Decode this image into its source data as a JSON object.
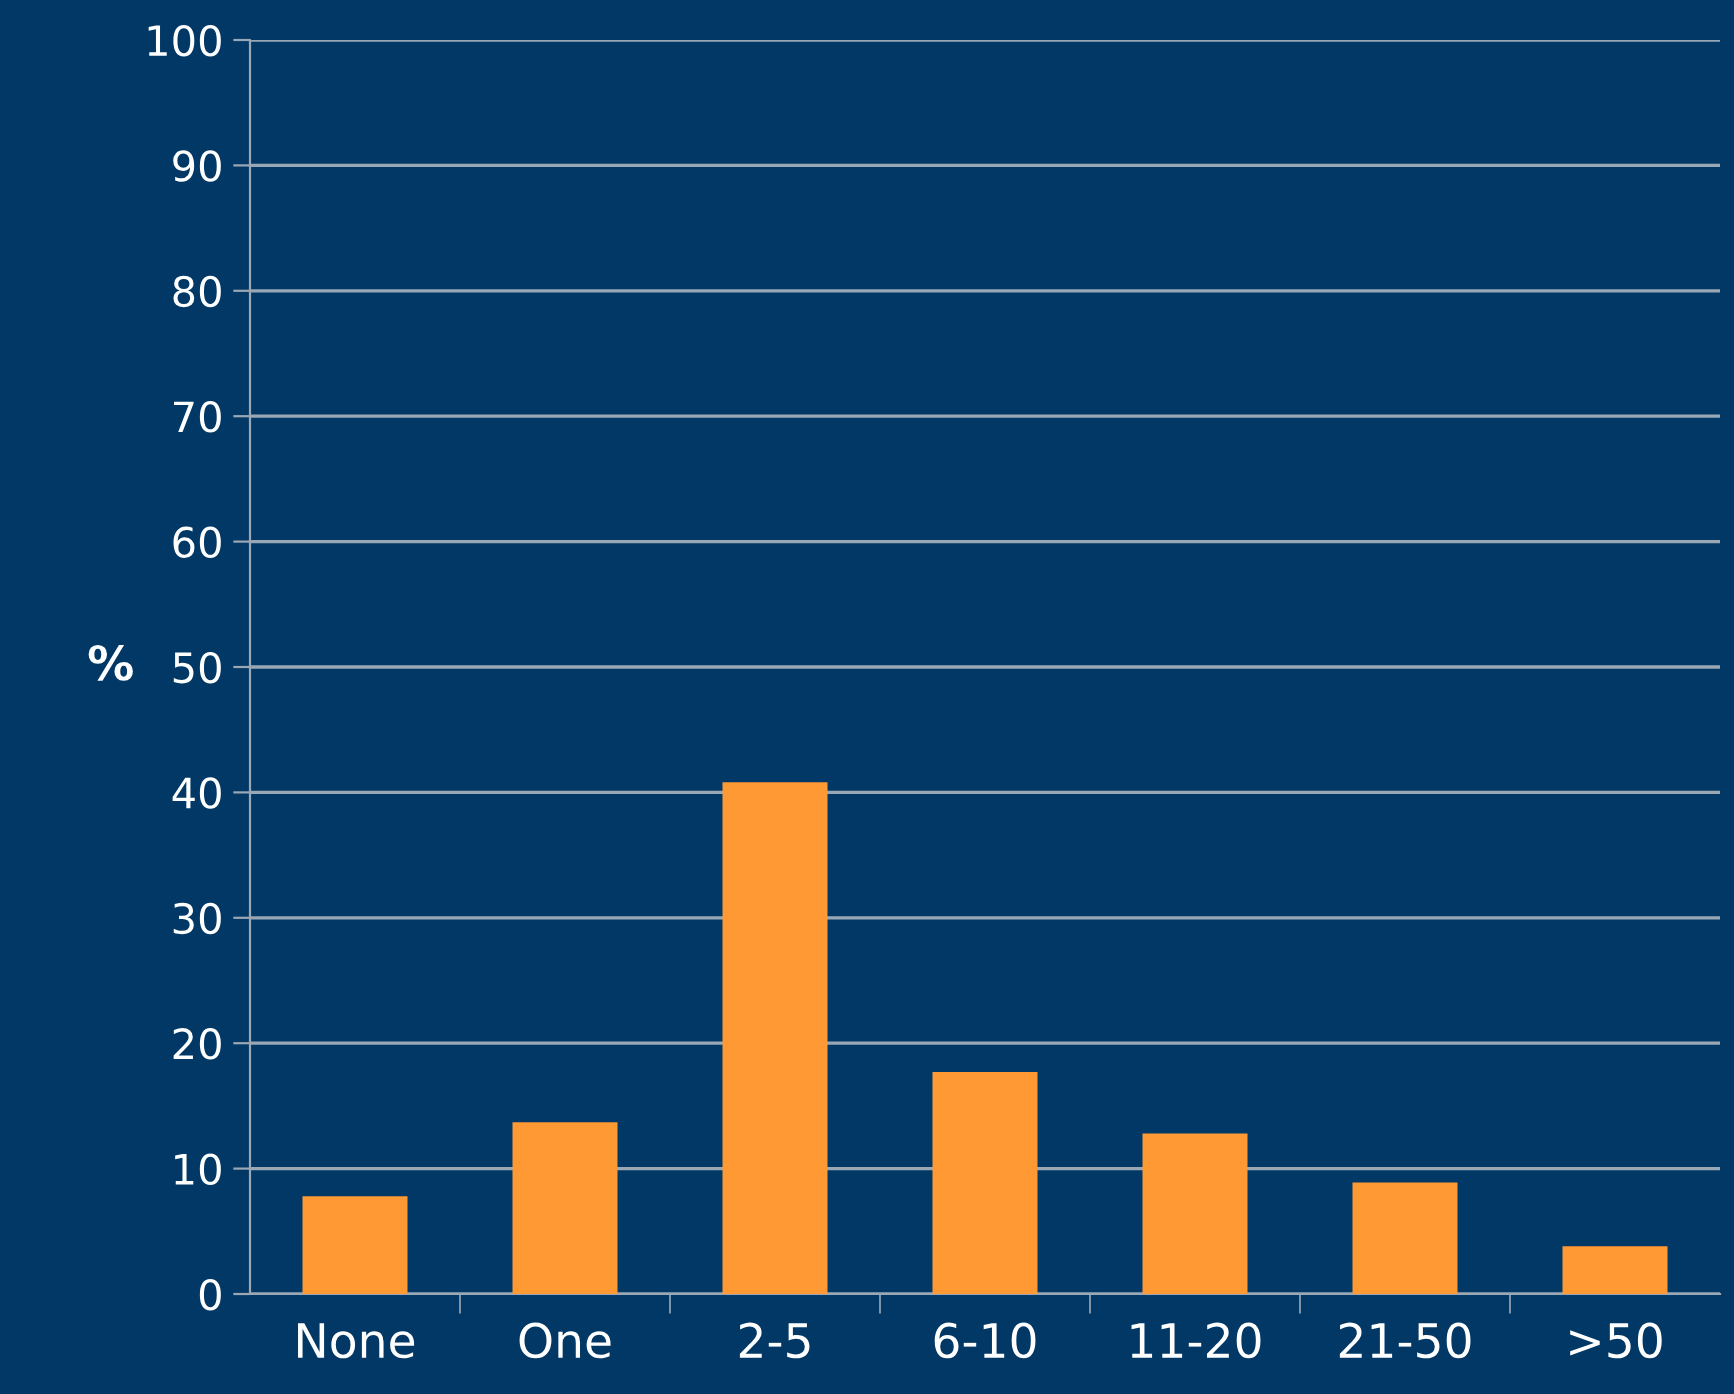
{
  "chart_data": {
    "type": "bar",
    "ylabel": "%",
    "categories": [
      "None",
      "One",
      "2-5",
      "6-10",
      "11-20",
      "21-50",
      ">50"
    ],
    "values": [
      7.8,
      13.7,
      40.8,
      17.7,
      12.8,
      8.9,
      3.8
    ],
    "color": "#ff9933",
    "ylim": [
      0,
      100
    ],
    "yticks": [
      0,
      10,
      20,
      30,
      40,
      50,
      60,
      70,
      80,
      90,
      100
    ],
    "grid": "y"
  }
}
